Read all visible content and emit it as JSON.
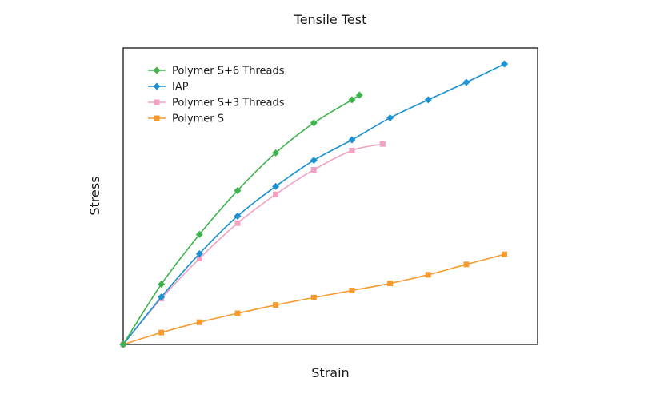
{
  "chart_data": {
    "type": "line",
    "title": "Tensile Test",
    "xlabel": "Strain",
    "ylabel": "Stress",
    "xlim": [
      0,
      10
    ],
    "ylim": [
      0,
      10
    ],
    "grid": false,
    "tick_labels": false,
    "legend_position": "top-left",
    "series": [
      {
        "name": "Polymer S+6 Threads",
        "color": "#3cb44b",
        "marker": "diamond",
        "x": [
          0,
          0.92,
          1.84,
          2.76,
          3.68,
          4.6,
          5.52,
          5.7
        ],
        "y": [
          0,
          2.03,
          3.71,
          5.19,
          6.46,
          7.47,
          8.25,
          8.41
        ]
      },
      {
        "name": "IAP",
        "color": "#1a91d3",
        "marker": "diamond",
        "x": [
          0,
          0.92,
          1.84,
          2.76,
          3.68,
          4.6,
          5.52,
          6.44,
          7.36,
          8.28,
          9.2
        ],
        "y": [
          0,
          1.6,
          3.06,
          4.33,
          5.33,
          6.21,
          6.9,
          7.64,
          8.25,
          8.84,
          9.46
        ]
      },
      {
        "name": "Polymer S+3 Threads",
        "color": "#f2a1c3",
        "marker": "square",
        "x": [
          0,
          0.92,
          1.84,
          2.76,
          3.68,
          4.6,
          5.52,
          6.26
        ],
        "y": [
          0,
          1.55,
          2.9,
          4.09,
          5.06,
          5.89,
          6.54,
          6.76
        ]
      },
      {
        "name": "Polymer S",
        "color": "#f59a2e",
        "marker": "square",
        "x": [
          0,
          0.92,
          1.84,
          2.76,
          3.68,
          4.6,
          5.52,
          6.44,
          7.36,
          8.28,
          9.2
        ],
        "y": [
          0,
          0.4,
          0.75,
          1.05,
          1.33,
          1.58,
          1.82,
          2.06,
          2.35,
          2.7,
          3.04
        ]
      }
    ]
  }
}
